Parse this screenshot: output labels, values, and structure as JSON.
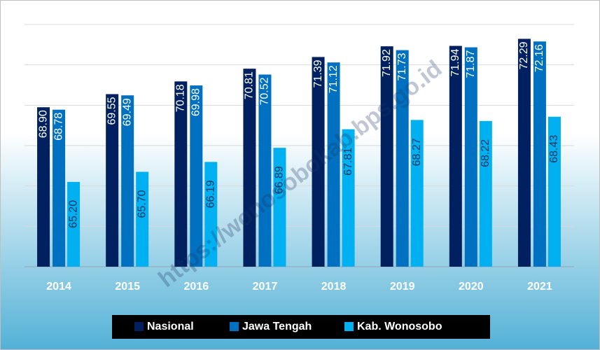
{
  "chart_data": {
    "type": "bar",
    "categories": [
      "2014",
      "2015",
      "2016",
      "2017",
      "2018",
      "2019",
      "2020",
      "2021"
    ],
    "series": [
      {
        "name": "Nasional",
        "color": "#002060",
        "values": [
          68.9,
          69.55,
          70.18,
          70.81,
          71.39,
          71.92,
          71.94,
          72.29
        ],
        "value_labels": [
          "68.90",
          "69.55",
          "70.18",
          "70.81",
          "71.39",
          "71.92",
          "71.94",
          "72.29"
        ]
      },
      {
        "name": "Jawa Tengah",
        "color": "#0070c0",
        "values": [
          68.78,
          69.49,
          69.98,
          70.52,
          71.12,
          71.73,
          71.87,
          72.16
        ],
        "value_labels": [
          "68.78",
          "69.49",
          "69.98",
          "70.52",
          "71.12",
          "71.73",
          "71.87",
          "72.16"
        ]
      },
      {
        "name": "Kab. Wonosobo",
        "color": "#00b0f0",
        "values": [
          65.2,
          65.7,
          66.19,
          66.89,
          67.81,
          68.27,
          68.22,
          68.43
        ],
        "value_labels": [
          "65.20",
          "65.70",
          "66.19",
          "66.89",
          "67.81",
          "68.27",
          "68.22",
          "68.43"
        ]
      }
    ],
    "ylim": [
      61,
      73
    ],
    "yticks": [
      61,
      63,
      65,
      67,
      69,
      71,
      73
    ],
    "grid": true,
    "legend": "bottom",
    "watermark": "https://wonosobokab.bps.go.id"
  }
}
